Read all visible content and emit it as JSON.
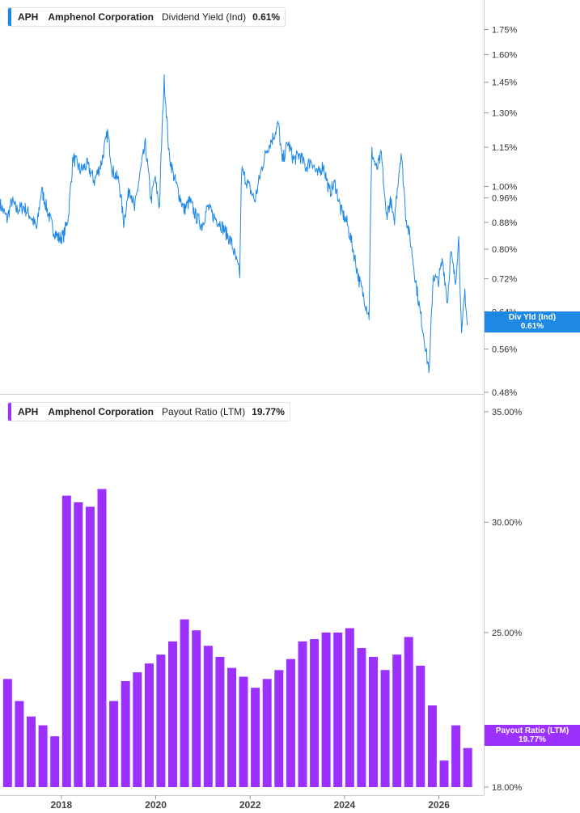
{
  "chart_data": [
    {
      "type": "line",
      "ticker": "APH",
      "company": "Amphenol Corporation",
      "metric": "Dividend Yield (Ind)",
      "current_value": "0.61%",
      "tag_label": "Div Yld (Ind)",
      "tag_value": "0.61%",
      "color": "#1e88e5",
      "scale": "log",
      "ylim": [
        0.48,
        1.9
      ],
      "yticks": [
        0.48,
        0.56,
        0.64,
        0.72,
        0.8,
        0.88,
        0.96,
        1.0,
        1.15,
        1.3,
        1.45,
        1.6,
        1.75
      ],
      "ytick_labels": [
        "0.48%",
        "0.56%",
        "0.64%",
        "0.72%",
        "0.80%",
        "0.88%",
        "0.96%",
        "1.00%",
        "1.15%",
        "1.30%",
        "1.45%",
        "1.60%",
        "1.75%"
      ],
      "xlim": [
        2016.7,
        2026.95
      ],
      "points": [
        [
          2016.7,
          0.94
        ],
        [
          2016.85,
          0.89
        ],
        [
          2016.95,
          0.95
        ],
        [
          2017.05,
          0.92
        ],
        [
          2017.2,
          0.93
        ],
        [
          2017.35,
          0.9
        ],
        [
          2017.48,
          0.86
        ],
        [
          2017.58,
          0.99
        ],
        [
          2017.7,
          0.92
        ],
        [
          2017.82,
          0.86
        ],
        [
          2017.95,
          0.83
        ],
        [
          2018.05,
          0.84
        ],
        [
          2018.15,
          0.9
        ],
        [
          2018.25,
          1.11
        ],
        [
          2018.4,
          1.06
        ],
        [
          2018.55,
          1.08
        ],
        [
          2018.7,
          1.02
        ],
        [
          2018.85,
          1.09
        ],
        [
          2018.98,
          1.21
        ],
        [
          2019.08,
          1.06
        ],
        [
          2019.22,
          1.02
        ],
        [
          2019.32,
          0.88
        ],
        [
          2019.45,
          1.0
        ],
        [
          2019.55,
          0.92
        ],
        [
          2019.68,
          1.06
        ],
        [
          2019.78,
          1.16
        ],
        [
          2019.9,
          0.95
        ],
        [
          2019.98,
          1.03
        ],
        [
          2020.08,
          0.93
        ],
        [
          2020.18,
          1.46
        ],
        [
          2020.28,
          1.12
        ],
        [
          2020.38,
          1.04
        ],
        [
          2020.5,
          0.97
        ],
        [
          2020.6,
          0.92
        ],
        [
          2020.72,
          0.95
        ],
        [
          2020.85,
          0.9
        ],
        [
          2020.98,
          0.87
        ],
        [
          2021.1,
          0.93
        ],
        [
          2021.22,
          0.9
        ],
        [
          2021.35,
          0.88
        ],
        [
          2021.48,
          0.85
        ],
        [
          2021.6,
          0.82
        ],
        [
          2021.72,
          0.76
        ],
        [
          2021.78,
          0.73
        ],
        [
          2021.82,
          1.06
        ],
        [
          2021.95,
          1.01
        ],
        [
          2022.1,
          0.95
        ],
        [
          2022.25,
          1.07
        ],
        [
          2022.35,
          1.14
        ],
        [
          2022.48,
          1.19
        ],
        [
          2022.6,
          1.25
        ],
        [
          2022.68,
          1.09
        ],
        [
          2022.8,
          1.17
        ],
        [
          2022.92,
          1.1
        ],
        [
          2023.05,
          1.12
        ],
        [
          2023.18,
          1.07
        ],
        [
          2023.3,
          1.1
        ],
        [
          2023.42,
          1.04
        ],
        [
          2023.55,
          1.08
        ],
        [
          2023.68,
          0.98
        ],
        [
          2023.8,
          1.01
        ],
        [
          2023.92,
          0.92
        ],
        [
          2024.05,
          0.88
        ],
        [
          2024.18,
          0.8
        ],
        [
          2024.3,
          0.72
        ],
        [
          2024.42,
          0.67
        ],
        [
          2024.52,
          0.63
        ],
        [
          2024.58,
          1.13
        ],
        [
          2024.68,
          1.06
        ],
        [
          2024.78,
          1.12
        ],
        [
          2024.88,
          0.9
        ],
        [
          2024.98,
          0.95
        ],
        [
          2025.05,
          0.87
        ],
        [
          2025.12,
          1.0
        ],
        [
          2025.2,
          1.13
        ],
        [
          2025.3,
          0.9
        ],
        [
          2025.4,
          0.82
        ],
        [
          2025.5,
          0.72
        ],
        [
          2025.6,
          0.64
        ],
        [
          2025.68,
          0.59
        ],
        [
          2025.75,
          0.54
        ],
        [
          2025.8,
          0.52
        ],
        [
          2025.88,
          0.73
        ],
        [
          2025.98,
          0.71
        ],
        [
          2026.08,
          0.77
        ],
        [
          2026.18,
          0.66
        ],
        [
          2026.25,
          0.79
        ],
        [
          2026.35,
          0.71
        ],
        [
          2026.42,
          0.83
        ],
        [
          2026.48,
          0.58
        ],
        [
          2026.55,
          0.69
        ],
        [
          2026.6,
          0.61
        ]
      ]
    },
    {
      "type": "bar",
      "ticker": "APH",
      "company": "Amphenol Corporation",
      "metric": "Payout Ratio (LTM)",
      "current_value": "19.77%",
      "tag_label": "Payout Ratio (LTM)",
      "tag_value": "19.77%",
      "color": "#9b30ff",
      "ylim": [
        18.0,
        35.0
      ],
      "yticks": [
        18.0,
        25.0,
        30.0,
        35.0
      ],
      "ytick_labels": [
        "18.00%",
        "25.00%",
        "30.00%",
        "35.00%"
      ],
      "xlim": [
        2016.7,
        2026.95
      ],
      "xticks": [
        2018,
        2020,
        2022,
        2024,
        2026
      ],
      "xtick_labels": [
        "2018",
        "2020",
        "2022",
        "2024",
        "2026"
      ],
      "bars": [
        [
          2016.86,
          22.9
        ],
        [
          2017.11,
          21.9
        ],
        [
          2017.36,
          21.2
        ],
        [
          2017.61,
          20.8
        ],
        [
          2017.86,
          20.3
        ],
        [
          2018.11,
          31.2
        ],
        [
          2018.36,
          30.9
        ],
        [
          2018.61,
          30.7
        ],
        [
          2018.86,
          31.5
        ],
        [
          2019.11,
          21.9
        ],
        [
          2019.36,
          22.8
        ],
        [
          2019.61,
          23.2
        ],
        [
          2019.86,
          23.6
        ],
        [
          2020.11,
          24.0
        ],
        [
          2020.36,
          24.6
        ],
        [
          2020.61,
          25.6
        ],
        [
          2020.86,
          25.1
        ],
        [
          2021.11,
          24.4
        ],
        [
          2021.36,
          23.9
        ],
        [
          2021.61,
          23.4
        ],
        [
          2021.86,
          23.0
        ],
        [
          2022.11,
          22.5
        ],
        [
          2022.36,
          22.9
        ],
        [
          2022.61,
          23.3
        ],
        [
          2022.86,
          23.8
        ],
        [
          2023.11,
          24.6
        ],
        [
          2023.36,
          24.7
        ],
        [
          2023.61,
          25.0
        ],
        [
          2023.86,
          25.0
        ],
        [
          2024.11,
          25.2
        ],
        [
          2024.36,
          24.3
        ],
        [
          2024.61,
          23.9
        ],
        [
          2024.86,
          23.3
        ],
        [
          2025.11,
          24.0
        ],
        [
          2025.36,
          24.8
        ],
        [
          2025.61,
          23.5
        ],
        [
          2025.86,
          21.7
        ],
        [
          2026.11,
          19.2
        ],
        [
          2026.36,
          20.8
        ],
        [
          2026.61,
          19.77
        ]
      ]
    }
  ]
}
